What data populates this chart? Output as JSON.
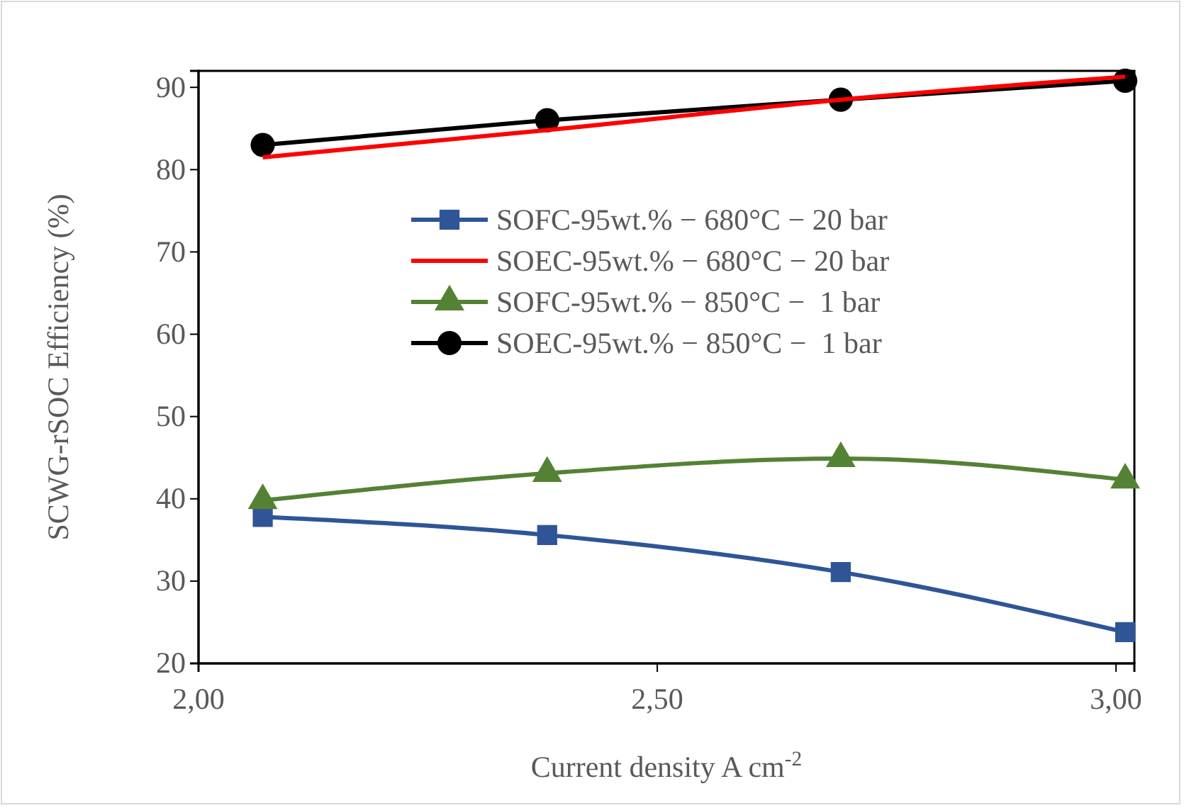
{
  "chart_data": {
    "type": "line",
    "ylabel": "SCWG-rSOC Efficiency (%)",
    "xlabel": "Current density A cm$^{-2}$",
    "x": [
      2.07,
      2.38,
      2.7,
      3.01
    ],
    "xlim": [
      2.0,
      3.02
    ],
    "xticks": [
      {
        "value": 2.0,
        "label": "2,00"
      },
      {
        "value": 2.5,
        "label": "2,50"
      },
      {
        "value": 3.0,
        "label": "3,00"
      }
    ],
    "ylim": [
      20,
      92
    ],
    "yticks": [
      20,
      30,
      40,
      50,
      60,
      70,
      80,
      90
    ],
    "grid": false,
    "legend": "right",
    "series": [
      {
        "name": "SOFC-95wt.% − 680°C − 20 bar",
        "color": "#2f5597",
        "marker": "square",
        "values": [
          37.8,
          35.6,
          31.1,
          23.8
        ]
      },
      {
        "name": "SOEC-95wt.% − 680°C − 20 bar",
        "color": "#ff0000",
        "marker": "none",
        "values": [
          81.5,
          84.8,
          88.5,
          91.3
        ]
      },
      {
        "name": "SOFC-95wt.% − 850°C −  1 bar",
        "color": "#548235",
        "marker": "triangle",
        "values": [
          39.8,
          43.1,
          44.9,
          42.3
        ]
      },
      {
        "name": "SOEC-95wt.% − 850°C −  1 bar",
        "color": "#000000",
        "marker": "circle",
        "values": [
          83.0,
          86.0,
          88.5,
          90.8
        ]
      }
    ]
  }
}
